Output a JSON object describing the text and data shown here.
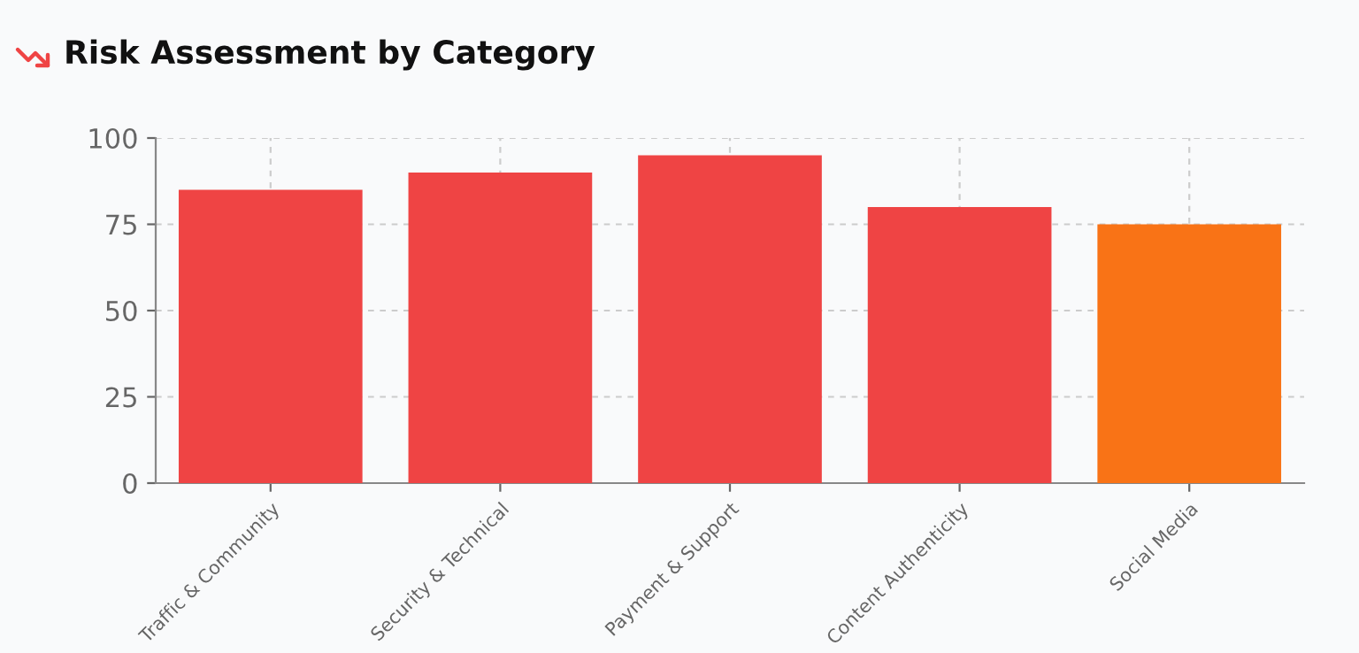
{
  "chart_data": {
    "type": "bar",
    "title": "Risk Assessment by Category",
    "categories": [
      "Traffic & Community",
      "Security & Technical",
      "Payment & Support",
      "Content Authenticity",
      "Social Media"
    ],
    "values": [
      85,
      90,
      95,
      80,
      75
    ],
    "colors": [
      "#ef4444",
      "#ef4444",
      "#ef4444",
      "#ef4444",
      "#f97316"
    ],
    "ylim": [
      0,
      100
    ],
    "yticks": [
      0,
      25,
      50,
      75,
      100
    ],
    "grid": true,
    "legend": false
  }
}
